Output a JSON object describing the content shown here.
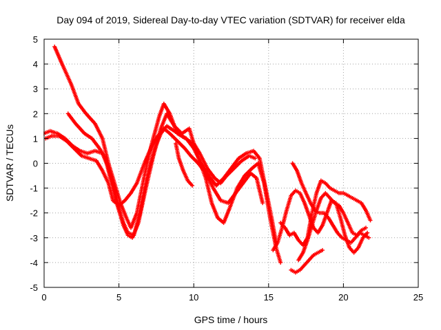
{
  "chart_data": {
    "type": "scatter",
    "title": "Day 094 of 2019, Sidereal Day-to-day VTEC variation (SDTVAR) for receiver elda",
    "xlabel": "GPS time / hours",
    "ylabel": "SDTVAR / TECUs",
    "xlim": [
      0,
      25
    ],
    "ylim": [
      -5,
      5
    ],
    "xticks": [
      0,
      5,
      10,
      15,
      20,
      25
    ],
    "yticks": [
      -5,
      -4,
      -3,
      -2,
      -1,
      0,
      1,
      2,
      3,
      4,
      5
    ],
    "grid": true,
    "legend": "none",
    "marker": "+",
    "color": "#ff0000",
    "series": [
      {
        "x": [
          0.7,
          1.2,
          1.8,
          2.3,
          2.8,
          3.4,
          3.9,
          4.3,
          4.7,
          5.1,
          5.5,
          5.8,
          6.2,
          6.7,
          7.2,
          7.7,
          8.0,
          8.4,
          8.9,
          9.5,
          10.0,
          10.5,
          11.0,
          11.5,
          12.0,
          12.5,
          13.0,
          13.5,
          14.0,
          14.4,
          14.8,
          15.2,
          15.5
        ],
        "y": [
          4.7,
          4.0,
          3.2,
          2.4,
          2.0,
          1.6,
          1.0,
          0.0,
          -0.8,
          -1.6,
          -2.2,
          -2.6,
          -2.0,
          -0.5,
          0.8,
          1.9,
          2.4,
          2.0,
          1.2,
          1.0,
          0.6,
          0.0,
          -0.5,
          -0.9,
          -0.6,
          -0.2,
          0.2,
          0.4,
          0.5,
          0.2,
          -1.0,
          -2.2,
          -3.2
        ]
      },
      {
        "x": [
          1.6,
          2.1,
          2.7,
          3.2,
          3.7,
          4.1,
          4.5,
          4.9,
          5.3,
          5.6,
          5.9,
          6.3,
          6.8,
          7.3,
          7.8,
          8.2,
          8.7,
          9.2,
          9.7,
          10.2,
          10.8,
          11.2,
          11.6,
          12.0,
          12.4,
          12.9,
          13.4,
          13.9,
          14.3,
          14.7,
          15.1,
          15.5,
          15.8
        ],
        "y": [
          2.0,
          1.6,
          1.2,
          1.0,
          0.6,
          0.2,
          -0.8,
          -1.7,
          -2.5,
          -2.9,
          -3.0,
          -2.4,
          -1.0,
          0.3,
          1.4,
          2.0,
          1.5,
          1.2,
          1.4,
          0.4,
          -0.6,
          -1.6,
          -2.2,
          -2.4,
          -1.8,
          -1.0,
          -0.5,
          -0.2,
          0.0,
          -0.8,
          -2.2,
          -3.4,
          -4.0
        ]
      },
      {
        "x": [
          0.0,
          0.4,
          0.9,
          1.4,
          1.9,
          2.4,
          2.9,
          3.4,
          3.9,
          4.3,
          4.7,
          5.0,
          5.3,
          5.6,
          6.0,
          6.4,
          6.9,
          7.4,
          7.8,
          8.2,
          8.7,
          9.2,
          9.7,
          10.0,
          10.4,
          10.9,
          11.4,
          11.8,
          12.2,
          12.7,
          13.2,
          13.7,
          14.1
        ],
        "y": [
          1.2,
          1.3,
          1.2,
          1.0,
          0.7,
          0.5,
          0.4,
          0.5,
          0.4,
          -0.2,
          -1.0,
          -1.8,
          -2.4,
          -2.8,
          -2.9,
          -2.0,
          -0.5,
          0.6,
          1.2,
          1.5,
          1.3,
          1.1,
          0.9,
          0.8,
          0.4,
          -0.2,
          -0.6,
          -0.8,
          -0.5,
          -0.2,
          0.1,
          0.3,
          0.2
        ]
      },
      {
        "x": [
          0.1,
          0.5,
          1.0,
          1.5,
          2.0,
          2.5,
          3.0,
          3.5,
          3.9,
          4.3,
          4.6,
          5.0,
          5.4,
          5.8,
          6.2,
          6.7,
          7.2,
          7.6,
          8.0,
          8.4,
          8.9,
          9.4,
          9.8,
          10.3,
          10.8,
          11.3,
          11.8,
          12.3,
          12.8,
          13.3,
          13.8,
          14.2,
          14.6
        ],
        "y": [
          1.0,
          1.1,
          1.1,
          0.9,
          0.6,
          0.3,
          0.2,
          0.1,
          -0.3,
          -0.8,
          -1.5,
          -1.7,
          -1.5,
          -1.2,
          -0.8,
          0.0,
          0.7,
          1.1,
          1.4,
          1.2,
          0.9,
          0.6,
          0.3,
          0.0,
          -0.4,
          -1.0,
          -1.5,
          -1.6,
          -1.2,
          -0.8,
          -0.4,
          -0.6,
          -1.6
        ]
      },
      {
        "x": [
          8.8,
          9.0,
          9.3,
          9.6,
          9.9
        ],
        "y": [
          0.8,
          0.2,
          -0.3,
          -0.7,
          -0.9
        ]
      },
      {
        "x": [
          15.3,
          15.6,
          15.9,
          16.2,
          16.5,
          16.8,
          17.1,
          17.4,
          17.7,
          18.0,
          18.3,
          18.6,
          18.9,
          19.2,
          19.5,
          19.8,
          20.1,
          20.4,
          20.7,
          21.0,
          21.3,
          21.6
        ],
        "y": [
          -3.5,
          -3.2,
          -2.6,
          -1.9,
          -1.3,
          -1.1,
          -1.2,
          -1.6,
          -2.1,
          -2.6,
          -2.8,
          -2.5,
          -2.0,
          -1.5,
          -1.6,
          -2.2,
          -2.9,
          -3.4,
          -3.6,
          -3.4,
          -3.0,
          -2.8
        ]
      },
      {
        "x": [
          15.8,
          16.1,
          16.4,
          16.7,
          17.0,
          17.3,
          17.6,
          17.9,
          18.2,
          18.5,
          18.8,
          19.1,
          19.4,
          19.7,
          20.0,
          20.3,
          20.6,
          20.9,
          21.2,
          21.5,
          21.8
        ],
        "y": [
          -2.4,
          -2.6,
          -2.9,
          -2.8,
          -3.1,
          -3.3,
          -3.0,
          -2.0,
          -1.2,
          -0.7,
          -0.8,
          -1.0,
          -1.1,
          -1.2,
          -1.2,
          -1.3,
          -1.4,
          -1.5,
          -1.6,
          -1.9,
          -2.3
        ]
      },
      {
        "x": [
          16.6,
          16.9,
          17.2,
          17.5,
          17.8,
          18.1,
          18.4,
          18.7,
          19.0,
          19.3,
          19.6,
          19.9,
          20.2,
          20.5,
          20.8,
          21.1,
          21.4,
          21.7
        ],
        "y": [
          0.0,
          -0.3,
          -0.8,
          -1.2,
          -1.6,
          -1.9,
          -2.0,
          -2.0,
          -2.2,
          -2.5,
          -2.8,
          -3.0,
          -3.1,
          -3.2,
          -3.0,
          -2.8,
          -2.9,
          -3.0
        ]
      },
      {
        "x": [
          16.5,
          16.8,
          17.1,
          17.4,
          17.7,
          18.0,
          18.3,
          18.6
        ],
        "y": [
          -4.3,
          -4.4,
          -4.3,
          -4.1,
          -3.9,
          -3.7,
          -3.6,
          -3.5
        ]
      },
      {
        "x": [
          17.0,
          17.3,
          17.6,
          17.9,
          18.2,
          18.5,
          18.8,
          19.1,
          19.4,
          19.7,
          20.0,
          20.3,
          20.6,
          20.9,
          21.2,
          21.5
        ],
        "y": [
          -3.9,
          -3.6,
          -3.1,
          -2.5,
          -1.9,
          -1.4,
          -1.2,
          -1.4,
          -1.6,
          -1.7,
          -2.0,
          -2.4,
          -2.8,
          -2.9,
          -2.7,
          -2.6
        ]
      }
    ]
  }
}
